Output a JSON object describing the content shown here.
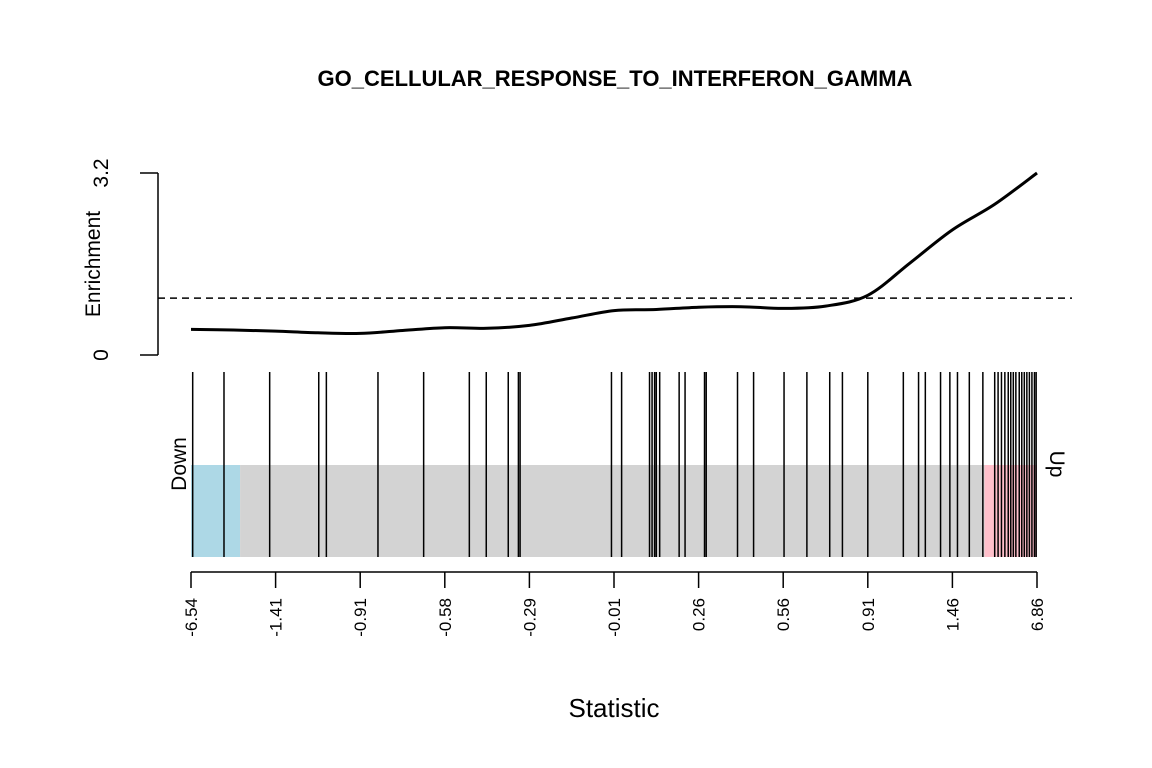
{
  "chart_data": {
    "type": "line",
    "title": "GO_CELLULAR_RESPONSE_TO_INTERFERON_GAMMA",
    "xlabel": "Statistic",
    "ylabel": "Enrichment",
    "y_ticks": [
      "0",
      "3.2"
    ],
    "ylim": [
      0,
      3.2
    ],
    "x_ticks": [
      "-6.54",
      "-1.41",
      "-0.91",
      "-0.58",
      "-0.29",
      "-0.01",
      "0.26",
      "0.56",
      "0.91",
      "1.46",
      "6.86"
    ],
    "reference_line": 1.0,
    "enrichment_curve": {
      "x": [
        0,
        0.05,
        0.1,
        0.15,
        0.2,
        0.25,
        0.3,
        0.35,
        0.4,
        0.45,
        0.5,
        0.55,
        0.6,
        0.65,
        0.7,
        0.75,
        0.8,
        0.85,
        0.9,
        0.95,
        1.0
      ],
      "y": [
        0.45,
        0.44,
        0.42,
        0.39,
        0.38,
        0.43,
        0.48,
        0.47,
        0.52,
        0.65,
        0.78,
        0.8,
        0.84,
        0.85,
        0.82,
        0.86,
        1.05,
        1.62,
        2.2,
        2.65,
        3.2
      ]
    },
    "barcode_positions": [
      0.002,
      0.039,
      0.093,
      0.151,
      0.16,
      0.221,
      0.275,
      0.329,
      0.349,
      0.375,
      0.387,
      0.389,
      0.497,
      0.509,
      0.542,
      0.545,
      0.548,
      0.55,
      0.554,
      0.577,
      0.584,
      0.607,
      0.609,
      0.646,
      0.665,
      0.701,
      0.728,
      0.755,
      0.77,
      0.8,
      0.842,
      0.86,
      0.868,
      0.886,
      0.897,
      0.906,
      0.92,
      0.936,
      0.95,
      0.954,
      0.958,
      0.962,
      0.966,
      0.969,
      0.972,
      0.975,
      0.979,
      0.982,
      0.985,
      0.988,
      0.991,
      0.994,
      0.997,
      0.999
    ],
    "regions": [
      {
        "side": "down",
        "label": "Down",
        "from": 0,
        "to": 0.058,
        "color": "#add8e6"
      },
      {
        "side": "middle",
        "from": 0.058,
        "to": 0.938,
        "color": "#d3d3d3"
      },
      {
        "side": "up",
        "label": "Up",
        "from": 0.938,
        "to": 1,
        "color": "#ffc0cb"
      }
    ],
    "grid": false
  }
}
